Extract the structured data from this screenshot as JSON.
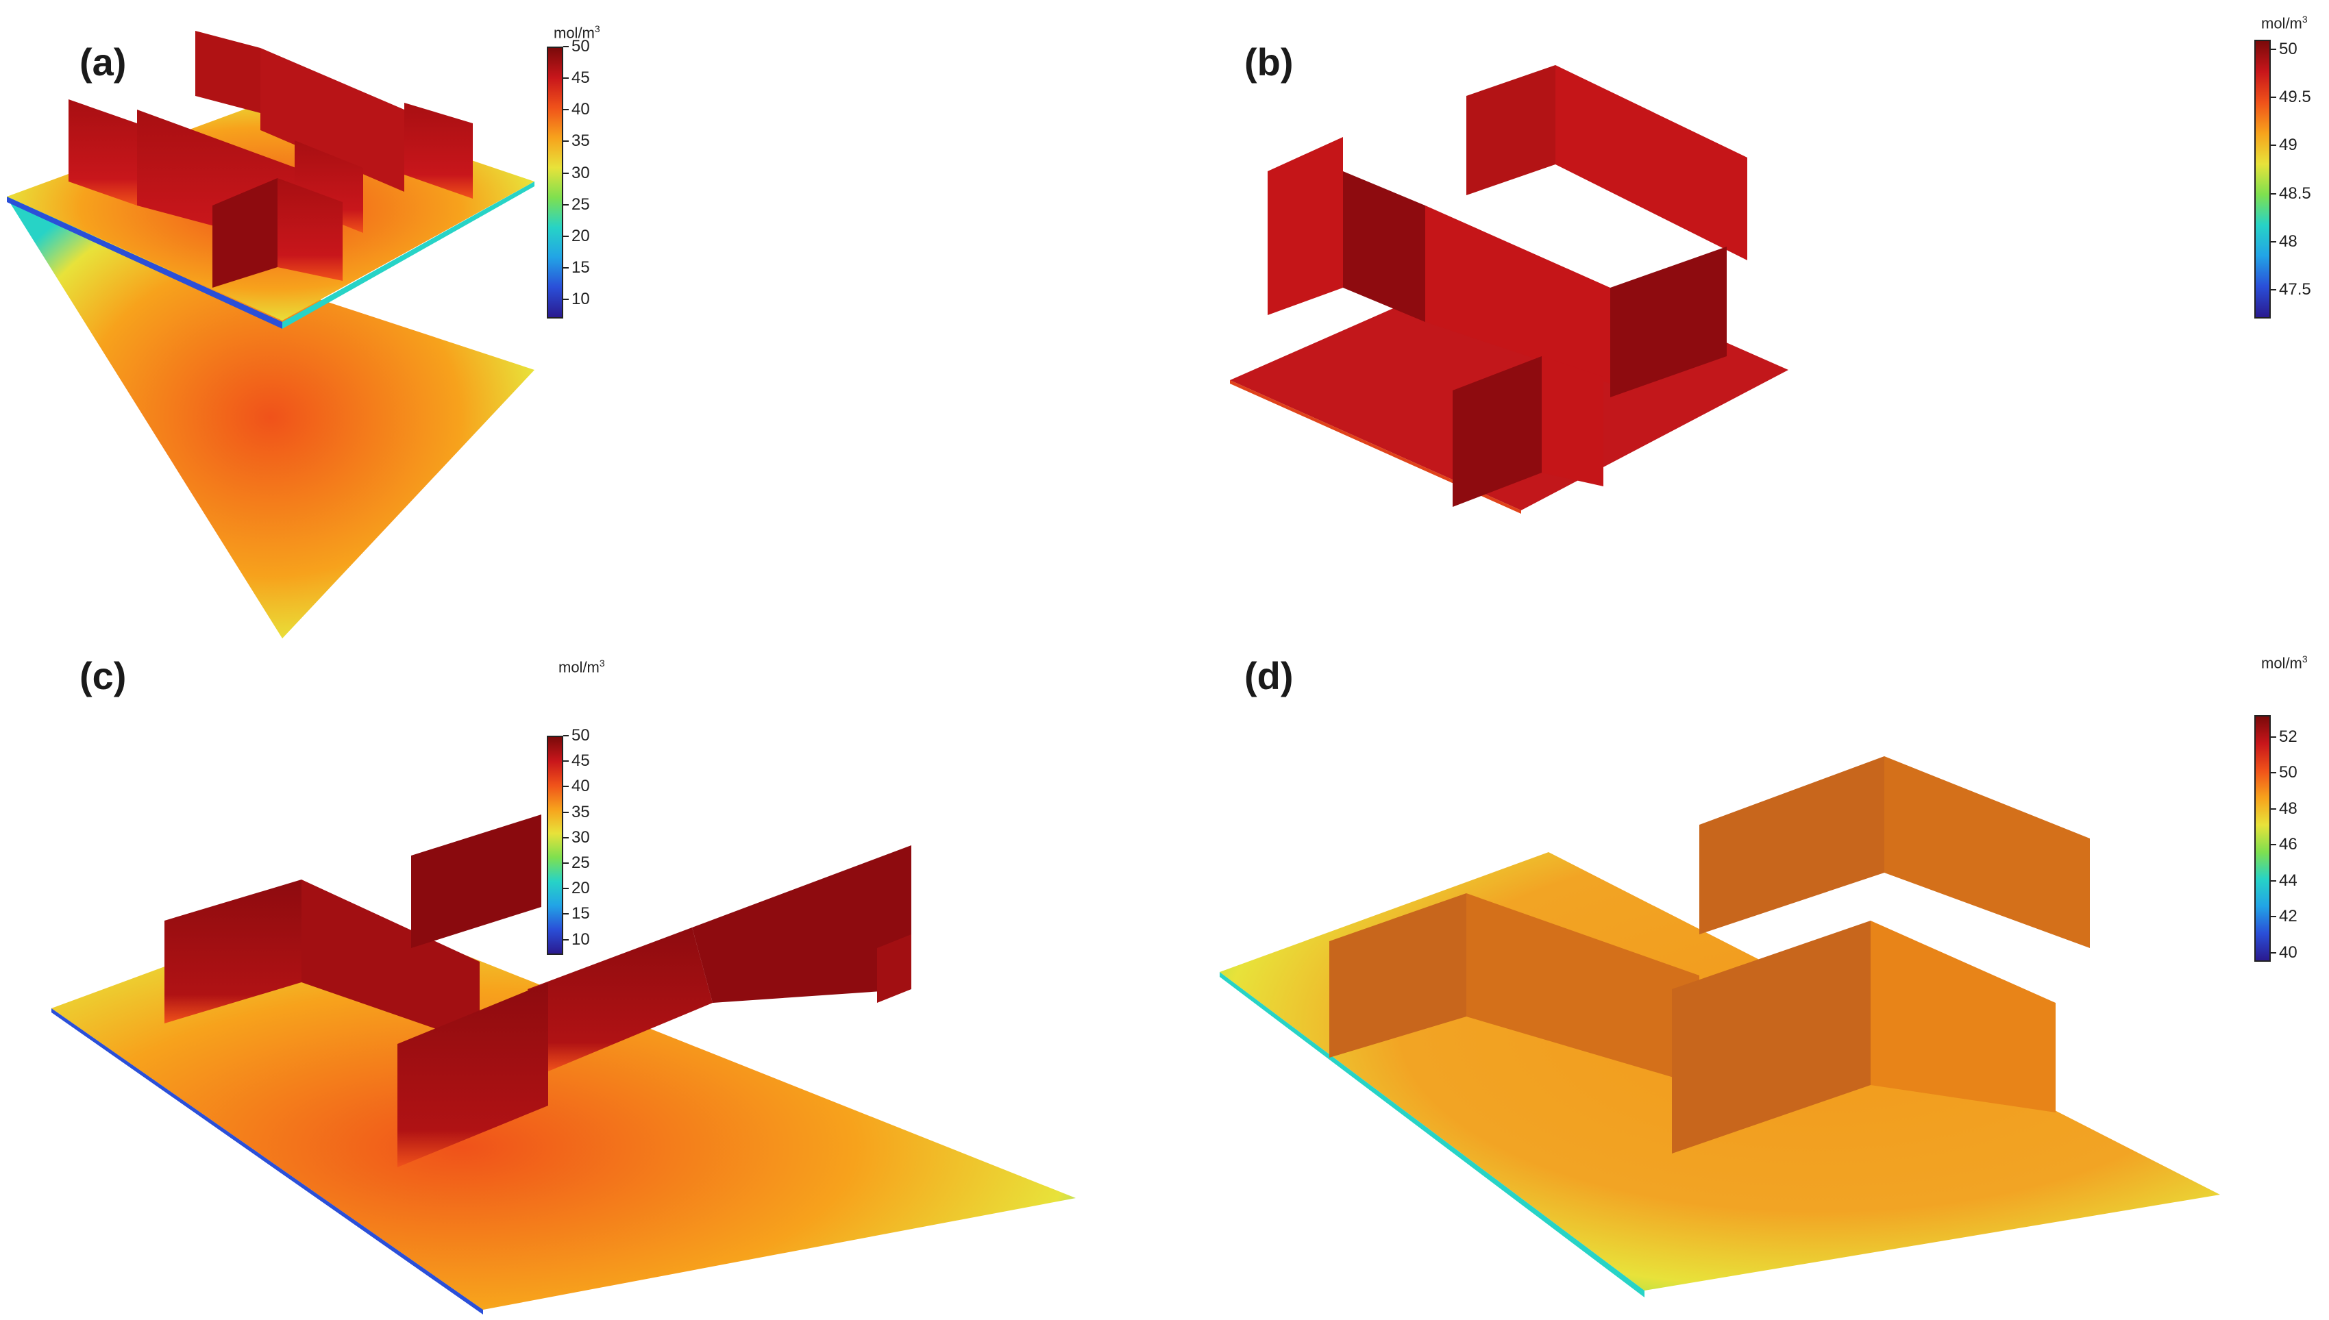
{
  "colormap": [
    "#2a1a8f",
    "#2a4fd8",
    "#22a4e6",
    "#27d3c6",
    "#7fe04f",
    "#e8e23a",
    "#f7a21c",
    "#f0521a",
    "#c8161b",
    "#7a0a0a"
  ],
  "panels": [
    {
      "label": "(a)",
      "unit_text": "mol/m",
      "unit_sup": "3",
      "range": [
        7,
        50
      ],
      "ticks": [
        "10",
        "15",
        "20",
        "25",
        "30",
        "35",
        "40",
        "45",
        "50"
      ],
      "tick_values": [
        10,
        15,
        20,
        25,
        30,
        35,
        40,
        45,
        50
      ]
    },
    {
      "label": "(b)",
      "unit_text": "mol/m",
      "unit_sup": "3",
      "range": [
        47.2,
        50.1
      ],
      "ticks": [
        "47.5",
        "48",
        "48.5",
        "49",
        "49.5",
        "50"
      ],
      "tick_values": [
        47.5,
        48,
        48.5,
        49,
        49.5,
        50
      ]
    },
    {
      "label": "(c)",
      "unit_text": "mol/m",
      "unit_sup": "3",
      "range": [
        7,
        50
      ],
      "ticks": [
        "10",
        "15",
        "20",
        "25",
        "30",
        "35",
        "40",
        "45",
        "50"
      ],
      "tick_values": [
        10,
        15,
        20,
        25,
        30,
        35,
        40,
        45,
        50
      ]
    },
    {
      "label": "(d)",
      "unit_text": "mol/m",
      "unit_sup": "3",
      "range": [
        39.5,
        53.2
      ],
      "ticks": [
        "40",
        "42",
        "44",
        "46",
        "48",
        "50",
        "52"
      ],
      "tick_values": [
        40,
        42,
        44,
        46,
        48,
        50,
        52
      ]
    }
  ]
}
